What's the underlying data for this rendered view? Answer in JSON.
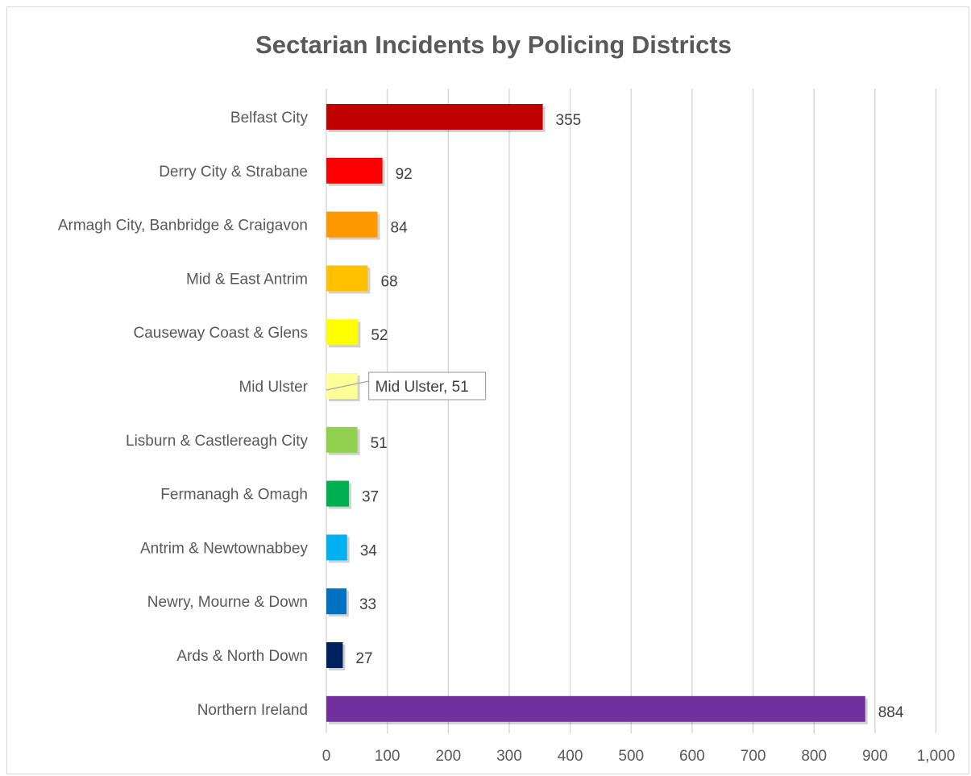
{
  "chart_data": {
    "type": "bar",
    "orientation": "horizontal",
    "title": "Sectarian Incidents by Policing Districts",
    "xlabel": "",
    "ylabel": "",
    "xlim": [
      0,
      1000
    ],
    "ticks": [
      0,
      100,
      200,
      300,
      400,
      500,
      600,
      700,
      800,
      900,
      1000
    ],
    "tick_labels": [
      "0",
      "100",
      "200",
      "300",
      "400",
      "500",
      "600",
      "700",
      "800",
      "900",
      "1,000"
    ],
    "grid": true,
    "legend": "none",
    "categories": [
      "Belfast City",
      "Derry City & Strabane",
      "Armagh City, Banbridge & Craigavon",
      "Mid & East Antrim",
      "Causeway Coast & Glens",
      "Mid Ulster",
      "Lisburn & Castlereagh City",
      "Fermanagh & Omagh",
      "Antrim & Newtownabbey",
      "Newry, Mourne & Down",
      "Ards & North Down",
      "Northern Ireland"
    ],
    "values": [
      355,
      92,
      84,
      68,
      52,
      51,
      51,
      37,
      34,
      33,
      27,
      884
    ],
    "data_labels": [
      "355",
      "92",
      "84",
      "68",
      "52",
      "Mid Ulster, 51",
      "51",
      "37",
      "34",
      "33",
      "27",
      "884"
    ],
    "colors": [
      "#c00000",
      "#ff0000",
      "#ff9900",
      "#ffc000",
      "#ffff00",
      "#ffff99",
      "#92d050",
      "#00b050",
      "#00b0f0",
      "#0070c0",
      "#002060",
      "#7030a0"
    ],
    "callout_index": 5
  }
}
